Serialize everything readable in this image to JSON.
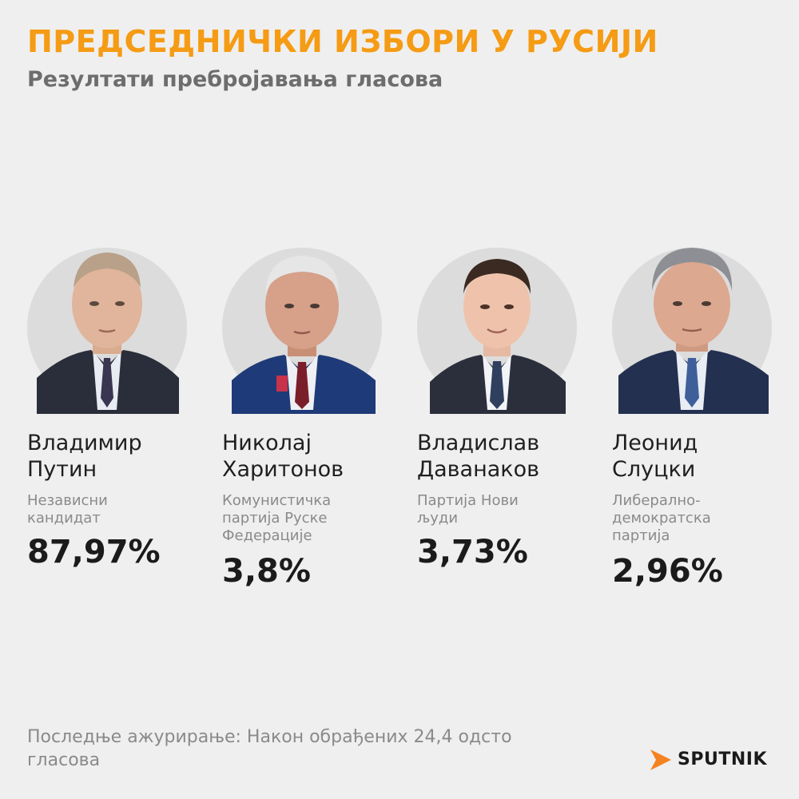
{
  "header": {
    "title": "ПРЕДСЕДНИЧКИ ИЗБОРИ У РУСИЈИ",
    "subtitle": "Резултати пребројавања гласова"
  },
  "candidates": [
    {
      "name_line1": "Владимир",
      "name_line2": "Путин",
      "party_lines": [
        "Независни",
        "кандидат"
      ],
      "percent": "87,97%",
      "percent_value": 87.97
    },
    {
      "name_line1": "Николај",
      "name_line2": "Харитонов",
      "party_lines": [
        "Комунистичка",
        "партија Руске",
        "Федерације"
      ],
      "percent": "3,8%",
      "percent_value": 3.8
    },
    {
      "name_line1": "Владислав",
      "name_line2": "Даванаков",
      "party_lines": [
        "Партија Нови",
        "људи"
      ],
      "percent": "3,73%",
      "percent_value": 3.73
    },
    {
      "name_line1": "Леонид",
      "name_line2": "Слуцки",
      "party_lines": [
        "Либерално-",
        "демократска",
        "партија"
      ],
      "percent": "2,96%",
      "percent_value": 2.96
    }
  ],
  "footer": {
    "note_line1": "Последње ажурирање: Након обрађених 24,4 одсто",
    "note_line2": "гласова",
    "brand": "SPUTNIK"
  },
  "colors": {
    "title": "#f59b14",
    "brand_accent": "#f58220",
    "background": "#efefef"
  },
  "icons": {
    "logo": "sputnik-arrow-logo"
  }
}
